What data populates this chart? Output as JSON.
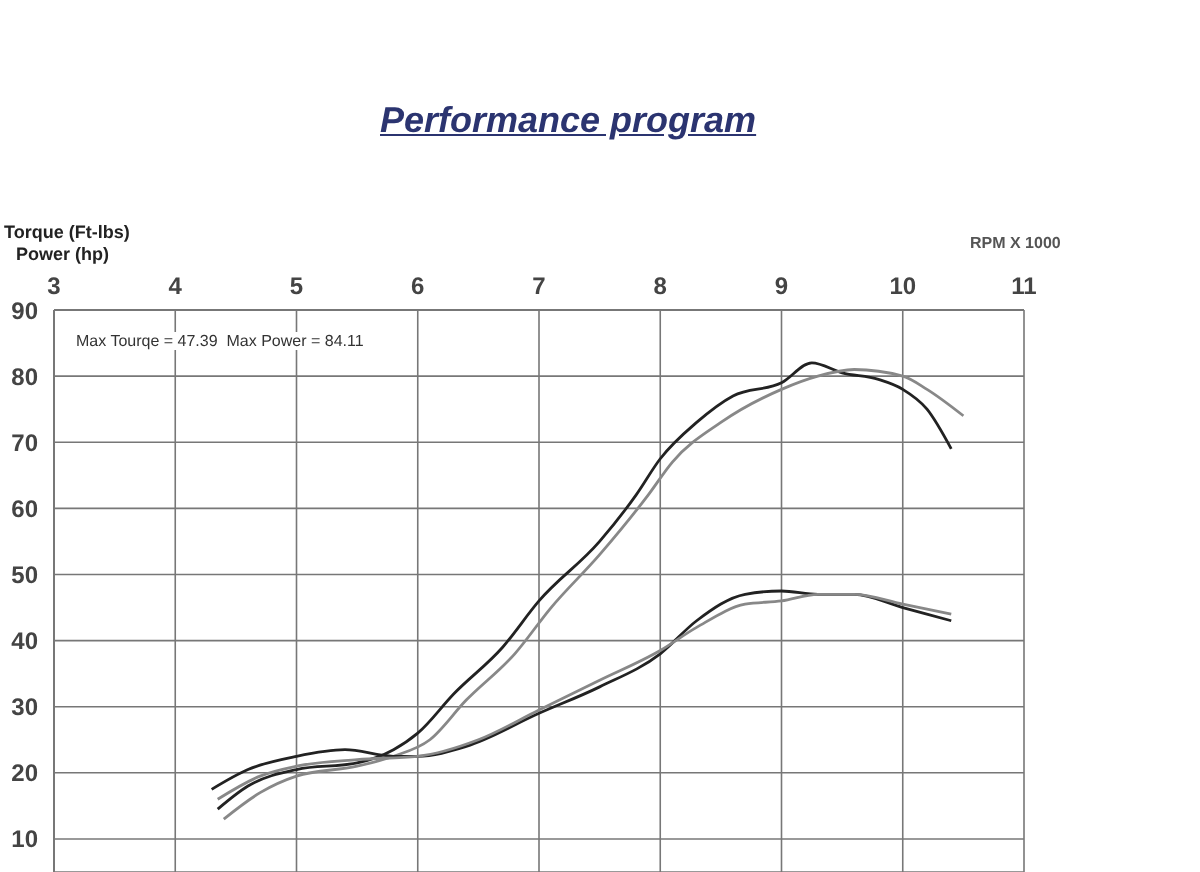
{
  "chart_data": {
    "type": "line",
    "title": "Performance program",
    "xlabel": "RPM X 1000",
    "ylabel": "Torque (Ft-lbs)\nPower (hp)",
    "annotations": [
      "Max Tourqe = 47.39  Max Power = 84.11"
    ],
    "xlim": [
      3,
      11
    ],
    "xticks": [
      3,
      4,
      5,
      6,
      7,
      8,
      9,
      10,
      11
    ],
    "ylim": [
      5,
      90
    ],
    "yticks": [
      10,
      20,
      30,
      40,
      50,
      60,
      70,
      80,
      90
    ],
    "grid": true,
    "legend": false,
    "marker": "none",
    "line_style": "solid",
    "series": [
      {
        "color": "#222222",
        "x": [
          4.35,
          4.6,
          5,
          5.5,
          5.8,
          6,
          6.3,
          6.7,
          7,
          7.5,
          7.8,
          8,
          8.3,
          8.6,
          9,
          9.25,
          9.5,
          9.8,
          10,
          10.2,
          10.4
        ],
        "values": [
          14.5,
          18,
          20.5,
          21.5,
          23.5,
          26,
          32,
          39,
          46,
          55,
          62,
          67.5,
          73,
          77,
          79,
          82,
          80.5,
          79.5,
          78,
          75,
          69
        ]
      },
      {
        "color": "#888888",
        "x": [
          4.4,
          4.7,
          5,
          5.5,
          5.8,
          6.1,
          6.4,
          6.8,
          7.1,
          7.5,
          7.9,
          8.1,
          8.5,
          9,
          9.3,
          9.6,
          10,
          10.2,
          10.5
        ],
        "values": [
          13,
          17,
          19.5,
          21,
          22.5,
          25,
          31,
          38,
          45,
          53,
          62,
          67,
          73,
          78,
          80,
          81,
          80,
          78,
          74
        ]
      },
      {
        "color": "#222222",
        "x": [
          4.3,
          4.6,
          5,
          5.4,
          5.8,
          6,
          6.4,
          7,
          7.5,
          8,
          8.3,
          8.7,
          9,
          9.3,
          9.6,
          10,
          10.4
        ],
        "values": [
          17.5,
          20.5,
          22.5,
          23.5,
          22.5,
          22.5,
          24,
          29,
          33,
          38,
          43,
          47,
          47.5,
          47,
          47,
          45,
          43
        ]
      },
      {
        "color": "#888888",
        "x": [
          4.35,
          4.7,
          5,
          5.5,
          6,
          6.5,
          7,
          7.5,
          8,
          8.3,
          8.7,
          9,
          9.3,
          9.6,
          10,
          10.4
        ],
        "values": [
          16,
          19.5,
          21,
          22,
          22.5,
          25,
          29.5,
          34,
          38.5,
          42,
          45.5,
          46,
          47,
          47,
          45.5,
          44
        ]
      }
    ]
  }
}
